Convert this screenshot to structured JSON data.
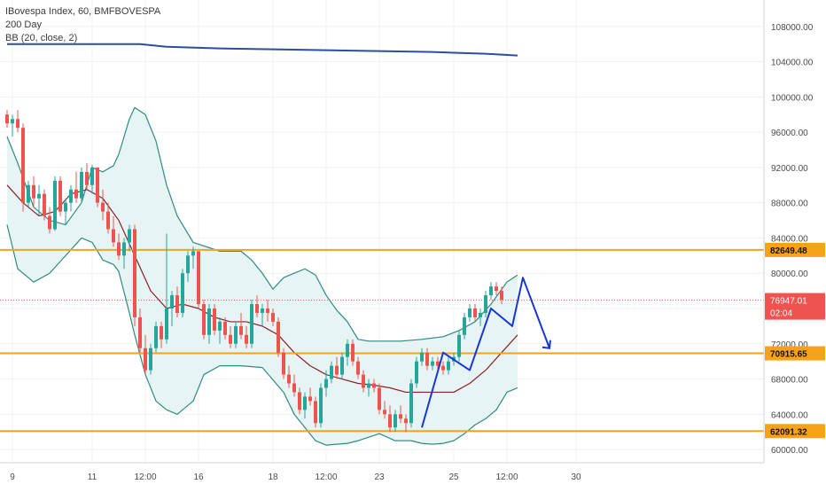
{
  "legend": {
    "symbol": "IBovespa Index, 60, BMFBOVESPA",
    "ma": "200 Day",
    "bb": "BB (20, close, 2)"
  },
  "colors": {
    "up": "#26a69a",
    "down": "#ef5350",
    "bb_band": "#2e8b80",
    "bb_fill": "#e6f4f3",
    "basis": "#8b1f2e",
    "ma200": "#2a4ea0",
    "level": "#f7a21b",
    "pattern": "#1a35d6",
    "grid": "#eef1f5",
    "last_price": "#ef5350"
  },
  "chart_data": {
    "type": "candlestick",
    "ylim": [
      58500,
      111000
    ],
    "y_ticks": [
      "60000.00",
      "64000.00",
      "68000.00",
      "72000.00",
      "76000.00",
      "80000.00",
      "84000.00",
      "88000.00",
      "92000.00",
      "96000.00",
      "100000.00",
      "104000.00",
      "108000.00"
    ],
    "x_ticks": [
      {
        "bar": 1,
        "label": "9"
      },
      {
        "bar": 16,
        "label": "11"
      },
      {
        "bar": 26,
        "label": "12:00"
      },
      {
        "bar": 36,
        "label": "16"
      },
      {
        "bar": 50,
        "label": "18"
      },
      {
        "bar": 60,
        "label": "12:00"
      },
      {
        "bar": 70,
        "label": "23"
      },
      {
        "bar": 84,
        "label": "25"
      },
      {
        "bar": 94,
        "label": "12:00"
      },
      {
        "bar": 107,
        "label": "30"
      }
    ],
    "candles": [
      [
        98000,
        98500,
        96500,
        97000
      ],
      [
        97000,
        98000,
        95500,
        97500
      ],
      [
        97500,
        98500,
        96000,
        96500
      ],
      [
        96500,
        97000,
        87000,
        88000
      ],
      [
        88000,
        90500,
        87500,
        90000
      ],
      [
        90000,
        91000,
        87500,
        88500
      ],
      [
        88500,
        90000,
        86500,
        89000
      ],
      [
        89000,
        89500,
        86000,
        86500
      ],
      [
        86500,
        87500,
        84500,
        85000
      ],
      [
        85000,
        91000,
        84800,
        90500
      ],
      [
        90500,
        91000,
        86500,
        87000
      ],
      [
        87000,
        88500,
        85500,
        88000
      ],
      [
        88000,
        90000,
        87000,
        89500
      ],
      [
        89500,
        91500,
        88000,
        88500
      ],
      [
        88500,
        92000,
        88000,
        91500
      ],
      [
        91500,
        92500,
        89500,
        90000
      ],
      [
        90000,
        92300,
        89000,
        92000
      ],
      [
        92000,
        92000,
        87500,
        88000
      ],
      [
        88000,
        89500,
        86000,
        87000
      ],
      [
        87000,
        88000,
        84500,
        85000
      ],
      [
        85000,
        86500,
        83000,
        83500
      ],
      [
        83500,
        84500,
        81500,
        82000
      ],
      [
        82000,
        84000,
        80500,
        83500
      ],
      [
        83500,
        85500,
        82500,
        85000
      ],
      [
        85000,
        85500,
        74000,
        75000
      ],
      [
        75000,
        76000,
        71000,
        71500
      ],
      [
        71500,
        73000,
        68500,
        69000
      ],
      [
        69000,
        72000,
        68500,
        71500
      ],
      [
        71500,
        74500,
        71000,
        74000
      ],
      [
        74000,
        74500,
        71500,
        72500
      ],
      [
        72500,
        84500,
        72000,
        76000
      ],
      [
        76000,
        78000,
        74000,
        77500
      ],
      [
        77500,
        78500,
        75000,
        75500
      ],
      [
        75500,
        80500,
        75000,
        80000
      ],
      [
        80000,
        82500,
        79000,
        82000
      ],
      [
        82000,
        83000,
        80500,
        82500
      ],
      [
        82500,
        82500,
        76000,
        76500
      ],
      [
        76500,
        77000,
        72500,
        73000
      ],
      [
        73000,
        76500,
        72000,
        76000
      ],
      [
        76000,
        76500,
        73000,
        73500
      ],
      [
        73500,
        75000,
        72000,
        74500
      ],
      [
        74500,
        75000,
        72500,
        73000
      ],
      [
        73000,
        74000,
        71500,
        72000
      ],
      [
        72000,
        74500,
        71500,
        74000
      ],
      [
        74000,
        75500,
        72500,
        73000
      ],
      [
        73000,
        74000,
        71500,
        72000
      ],
      [
        72000,
        77000,
        71500,
        76500
      ],
      [
        76500,
        77500,
        75000,
        75500
      ],
      [
        75500,
        76500,
        74000,
        76000
      ],
      [
        76000,
        77000,
        74500,
        75500
      ],
      [
        75500,
        76000,
        74000,
        74500
      ],
      [
        74500,
        75000,
        70500,
        71000
      ],
      [
        71000,
        71500,
        68000,
        68500
      ],
      [
        68500,
        69500,
        67000,
        67500
      ],
      [
        67500,
        68500,
        66000,
        66500
      ],
      [
        66500,
        67000,
        64000,
        64500
      ],
      [
        64500,
        66500,
        63500,
        66000
      ],
      [
        66000,
        67000,
        65000,
        65500
      ],
      [
        65500,
        66000,
        62500,
        63000
      ],
      [
        63000,
        67500,
        62500,
        67000
      ],
      [
        67000,
        69000,
        66000,
        68000
      ],
      [
        68000,
        70000,
        67500,
        69500
      ],
      [
        69500,
        70500,
        68000,
        68500
      ],
      [
        68500,
        71000,
        68000,
        70500
      ],
      [
        70500,
        72500,
        69500,
        72000
      ],
      [
        72000,
        72500,
        69500,
        70000
      ],
      [
        70000,
        70500,
        68000,
        68500
      ],
      [
        68500,
        69000,
        66500,
        67000
      ],
      [
        67000,
        68000,
        66000,
        67500
      ],
      [
        67500,
        68000,
        66500,
        67000
      ],
      [
        67000,
        67500,
        64000,
        64500
      ],
      [
        64500,
        65500,
        63500,
        64000
      ],
      [
        64000,
        65000,
        62000,
        62500
      ],
      [
        62500,
        64500,
        62000,
        64000
      ],
      [
        64000,
        65000,
        63000,
        63500
      ],
      [
        63500,
        64000,
        62000,
        63000
      ],
      [
        63000,
        68000,
        62500,
        67500
      ],
      [
        67500,
        70500,
        67000,
        70000
      ],
      [
        70000,
        71500,
        69500,
        71000
      ],
      [
        71000,
        71500,
        69000,
        69500
      ],
      [
        69500,
        70500,
        69000,
        70000
      ],
      [
        70000,
        70500,
        69000,
        69500
      ],
      [
        69500,
        70000,
        68500,
        69000
      ],
      [
        69000,
        70500,
        68500,
        70000
      ],
      [
        70000,
        71000,
        69500,
        70500
      ],
      [
        70500,
        73500,
        70000,
        73000
      ],
      [
        73000,
        75500,
        72500,
        75000
      ],
      [
        75000,
        76500,
        74500,
        76000
      ],
      [
        76000,
        76500,
        74500,
        75000
      ],
      [
        75000,
        76000,
        74000,
        75500
      ],
      [
        75500,
        78000,
        75000,
        77500
      ],
      [
        77500,
        79000,
        77000,
        78500
      ],
      [
        78500,
        79000,
        77500,
        78000
      ],
      [
        78000,
        78500,
        76500,
        77000
      ]
    ],
    "bb_upper": [
      [
        0,
        95500
      ],
      [
        2,
        92500
      ],
      [
        5,
        87500
      ],
      [
        8,
        86000
      ],
      [
        11,
        85500
      ],
      [
        14,
        88000
      ],
      [
        16,
        92000
      ],
      [
        18,
        91500
      ],
      [
        20,
        92200
      ],
      [
        21,
        93500
      ],
      [
        23,
        97500
      ],
      [
        24,
        98800
      ],
      [
        26,
        98000
      ],
      [
        28,
        95000
      ],
      [
        30,
        90000
      ],
      [
        32,
        86500
      ],
      [
        35,
        83500
      ],
      [
        40,
        82500
      ],
      [
        44,
        82500
      ],
      [
        46,
        81500
      ],
      [
        48,
        80000
      ],
      [
        50,
        78200
      ],
      [
        52,
        79500
      ],
      [
        54,
        80000
      ],
      [
        56,
        80500
      ],
      [
        58,
        79800
      ],
      [
        60,
        77500
      ],
      [
        62,
        75800
      ],
      [
        64,
        74500
      ],
      [
        66,
        72500
      ],
      [
        68,
        72300
      ],
      [
        70,
        72300
      ],
      [
        74,
        72300
      ],
      [
        78,
        72500
      ],
      [
        82,
        72800
      ],
      [
        85,
        73500
      ],
      [
        88,
        74500
      ],
      [
        91,
        76500
      ],
      [
        94,
        79000
      ],
      [
        96,
        79800
      ]
    ],
    "bb_lower": [
      [
        0,
        85500
      ],
      [
        2,
        80500
      ],
      [
        5,
        79000
      ],
      [
        8,
        80000
      ],
      [
        11,
        82000
      ],
      [
        14,
        84000
      ],
      [
        16,
        83500
      ],
      [
        18,
        81500
      ],
      [
        20,
        81000
      ],
      [
        21,
        80200
      ],
      [
        23,
        75500
      ],
      [
        24,
        73000
      ],
      [
        26,
        68500
      ],
      [
        28,
        65500
      ],
      [
        30,
        64500
      ],
      [
        32,
        64000
      ],
      [
        35,
        65500
      ],
      [
        37,
        68500
      ],
      [
        40,
        69500
      ],
      [
        44,
        69500
      ],
      [
        48,
        69300
      ],
      [
        52,
        66500
      ],
      [
        54,
        64000
      ],
      [
        56,
        62500
      ],
      [
        58,
        61000
      ],
      [
        60,
        60500
      ],
      [
        62,
        60600
      ],
      [
        64,
        60700
      ],
      [
        66,
        61000
      ],
      [
        68,
        61400
      ],
      [
        70,
        61800
      ],
      [
        73,
        61000
      ],
      [
        76,
        61000
      ],
      [
        78,
        60700
      ],
      [
        80,
        60600
      ],
      [
        82,
        60700
      ],
      [
        84,
        61000
      ],
      [
        86,
        61800
      ],
      [
        88,
        62800
      ],
      [
        90,
        63500
      ],
      [
        92,
        64500
      ],
      [
        94,
        66500
      ],
      [
        96,
        67000
      ]
    ],
    "bb_basis": [
      [
        0,
        90000
      ],
      [
        3,
        88000
      ],
      [
        6,
        86500
      ],
      [
        9,
        87000
      ],
      [
        12,
        89000
      ],
      [
        15,
        89500
      ],
      [
        18,
        88500
      ],
      [
        21,
        86000
      ],
      [
        24,
        82000
      ],
      [
        27,
        78000
      ],
      [
        30,
        76000
      ],
      [
        33,
        76500
      ],
      [
        36,
        76000
      ],
      [
        39,
        75000
      ],
      [
        42,
        74500
      ],
      [
        45,
        74500
      ],
      [
        48,
        74000
      ],
      [
        51,
        73000
      ],
      [
        54,
        71000
      ],
      [
        57,
        69500
      ],
      [
        60,
        68500
      ],
      [
        63,
        68000
      ],
      [
        66,
        67500
      ],
      [
        69,
        67300
      ],
      [
        72,
        67000
      ],
      [
        75,
        66500
      ],
      [
        78,
        66500
      ],
      [
        81,
        66500
      ],
      [
        84,
        66500
      ],
      [
        87,
        67500
      ],
      [
        90,
        69000
      ],
      [
        93,
        71000
      ],
      [
        96,
        73000
      ]
    ],
    "ma200": [
      [
        0,
        106000
      ],
      [
        10,
        106000
      ],
      [
        20,
        106000
      ],
      [
        25,
        106000
      ],
      [
        30,
        105700
      ],
      [
        40,
        105500
      ],
      [
        50,
        105400
      ],
      [
        60,
        105300
      ],
      [
        70,
        105200
      ],
      [
        80,
        105100
      ],
      [
        90,
        104900
      ],
      [
        96,
        104700
      ]
    ],
    "levels": [
      {
        "label": "82649.48",
        "value": 82649.48
      },
      {
        "label": "70915.65",
        "value": 70915.65
      },
      {
        "label": "62091.32",
        "value": 62091.32
      }
    ],
    "last_price": {
      "label": "76947.01",
      "value": 76947.01,
      "countdown": "02:04"
    },
    "pattern": [
      [
        78,
        62500
      ],
      [
        82,
        71000
      ],
      [
        87,
        69000
      ],
      [
        91,
        76000
      ],
      [
        95,
        74000
      ],
      [
        97,
        79500
      ],
      [
        102,
        71500
      ]
    ]
  }
}
